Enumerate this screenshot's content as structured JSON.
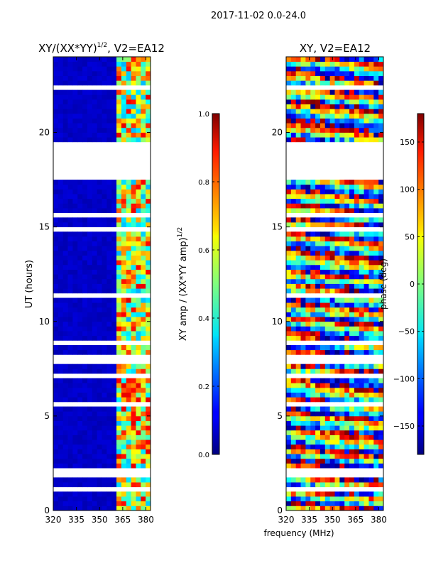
{
  "figure_title": "2017-11-02 0.0-24.0",
  "chart_data": [
    {
      "type": "heatmap",
      "title": "XY/(XX*YY)^{1/2}, V2=EA12",
      "title_main": "XY/(XX*YY)",
      "title_exp": "1/2",
      "title_tail": ", V2=EA12",
      "xlabel": "",
      "ylabel": "UT (hours)",
      "xlim": [
        320,
        383
      ],
      "ylim": [
        0,
        24
      ],
      "xticks": [
        320,
        335,
        350,
        365,
        380
      ],
      "yticks": [
        0,
        5,
        10,
        15,
        20
      ],
      "colorbar": {
        "label": "XY amp / (XX*YY amp)^{1/2}",
        "label_main": "XY amp / (XX*YY amp)",
        "label_exp": "1/2",
        "vmin": 0.0,
        "vmax": 1.0,
        "ticks": [
          0.0,
          0.2,
          0.4,
          0.6,
          0.8,
          1.0
        ],
        "tick_labels": [
          "0.0",
          "0.2",
          "0.4",
          "0.6",
          "0.8",
          "1.0"
        ],
        "colormap": "jet"
      },
      "value_summary": {
        "background_amp": 0.05,
        "active_band_mhz": [
          360,
          382
        ],
        "active_amp_range": [
          0.3,
          0.9
        ],
        "no_data_hours": [
          17.6,
          19.4
        ]
      }
    },
    {
      "type": "heatmap",
      "title": "XY, V2=EA12",
      "xlabel": "frequency (MHz)",
      "ylabel": "",
      "xlim": [
        320,
        383
      ],
      "ylim": [
        0,
        24
      ],
      "xticks": [
        320,
        335,
        350,
        365,
        380
      ],
      "yticks": [
        0,
        5,
        10,
        15,
        20
      ],
      "colorbar": {
        "label": "phase (deg)",
        "vmin": -180,
        "vmax": 180,
        "ticks": [
          -150,
          -100,
          -50,
          0,
          50,
          100,
          150
        ],
        "tick_labels": [
          "−150",
          "−100",
          "−50",
          "0",
          "50",
          "100",
          "150"
        ],
        "colormap": "jet"
      },
      "value_summary": {
        "phase_range_deg": [
          -180,
          180
        ],
        "no_data_hours": [
          17.6,
          19.4
        ]
      }
    }
  ]
}
